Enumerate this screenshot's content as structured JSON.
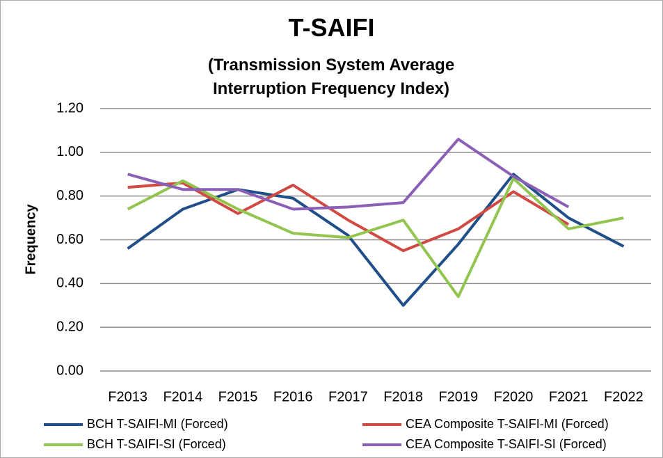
{
  "chart_data": {
    "type": "line",
    "title": "T-SAIFI",
    "subtitle": "(Transmission System Average Interruption Frequency Index)",
    "y_label": "Frequency",
    "categories": [
      "F2013",
      "F2014",
      "F2015",
      "F2016",
      "F2017",
      "F2018",
      "F2019",
      "F2020",
      "F2021",
      "F2022"
    ],
    "series": [
      {
        "name": "BCH T-SAIFI-MI (Forced)",
        "color": "#1f4e89",
        "values": [
          0.56,
          0.74,
          0.83,
          0.79,
          0.62,
          0.3,
          0.58,
          0.9,
          0.7,
          0.57
        ]
      },
      {
        "name": "CEA Composite T-SAIFI-MI (Forced)",
        "color": "#d04a43",
        "values": [
          0.84,
          0.86,
          0.72,
          0.85,
          0.69,
          0.55,
          0.65,
          0.82,
          0.67,
          null
        ]
      },
      {
        "name": "BCH T-SAIFI-SI (Forced)",
        "color": "#92c54f",
        "values": [
          0.74,
          0.87,
          0.74,
          0.63,
          0.61,
          0.69,
          0.34,
          0.88,
          0.65,
          0.7
        ]
      },
      {
        "name": "CEA Composite T-SAIFI-SI (Forced)",
        "color": "#8a5fb5",
        "values": [
          0.9,
          0.83,
          0.83,
          0.74,
          0.75,
          0.77,
          1.06,
          0.89,
          0.75,
          null
        ]
      }
    ],
    "ylim": [
      0,
      1.2
    ],
    "yticks": [
      {
        "value": 0,
        "label": "0.00"
      },
      {
        "value": 0.2,
        "label": "0.20"
      },
      {
        "value": 0.4,
        "label": "0.40"
      },
      {
        "value": 0.6,
        "label": "0.60"
      },
      {
        "value": 0.8,
        "label": "0.80"
      },
      {
        "value": 1.0,
        "label": "1.00"
      },
      {
        "value": 1.2,
        "label": "1.20"
      }
    ],
    "grid": true
  }
}
